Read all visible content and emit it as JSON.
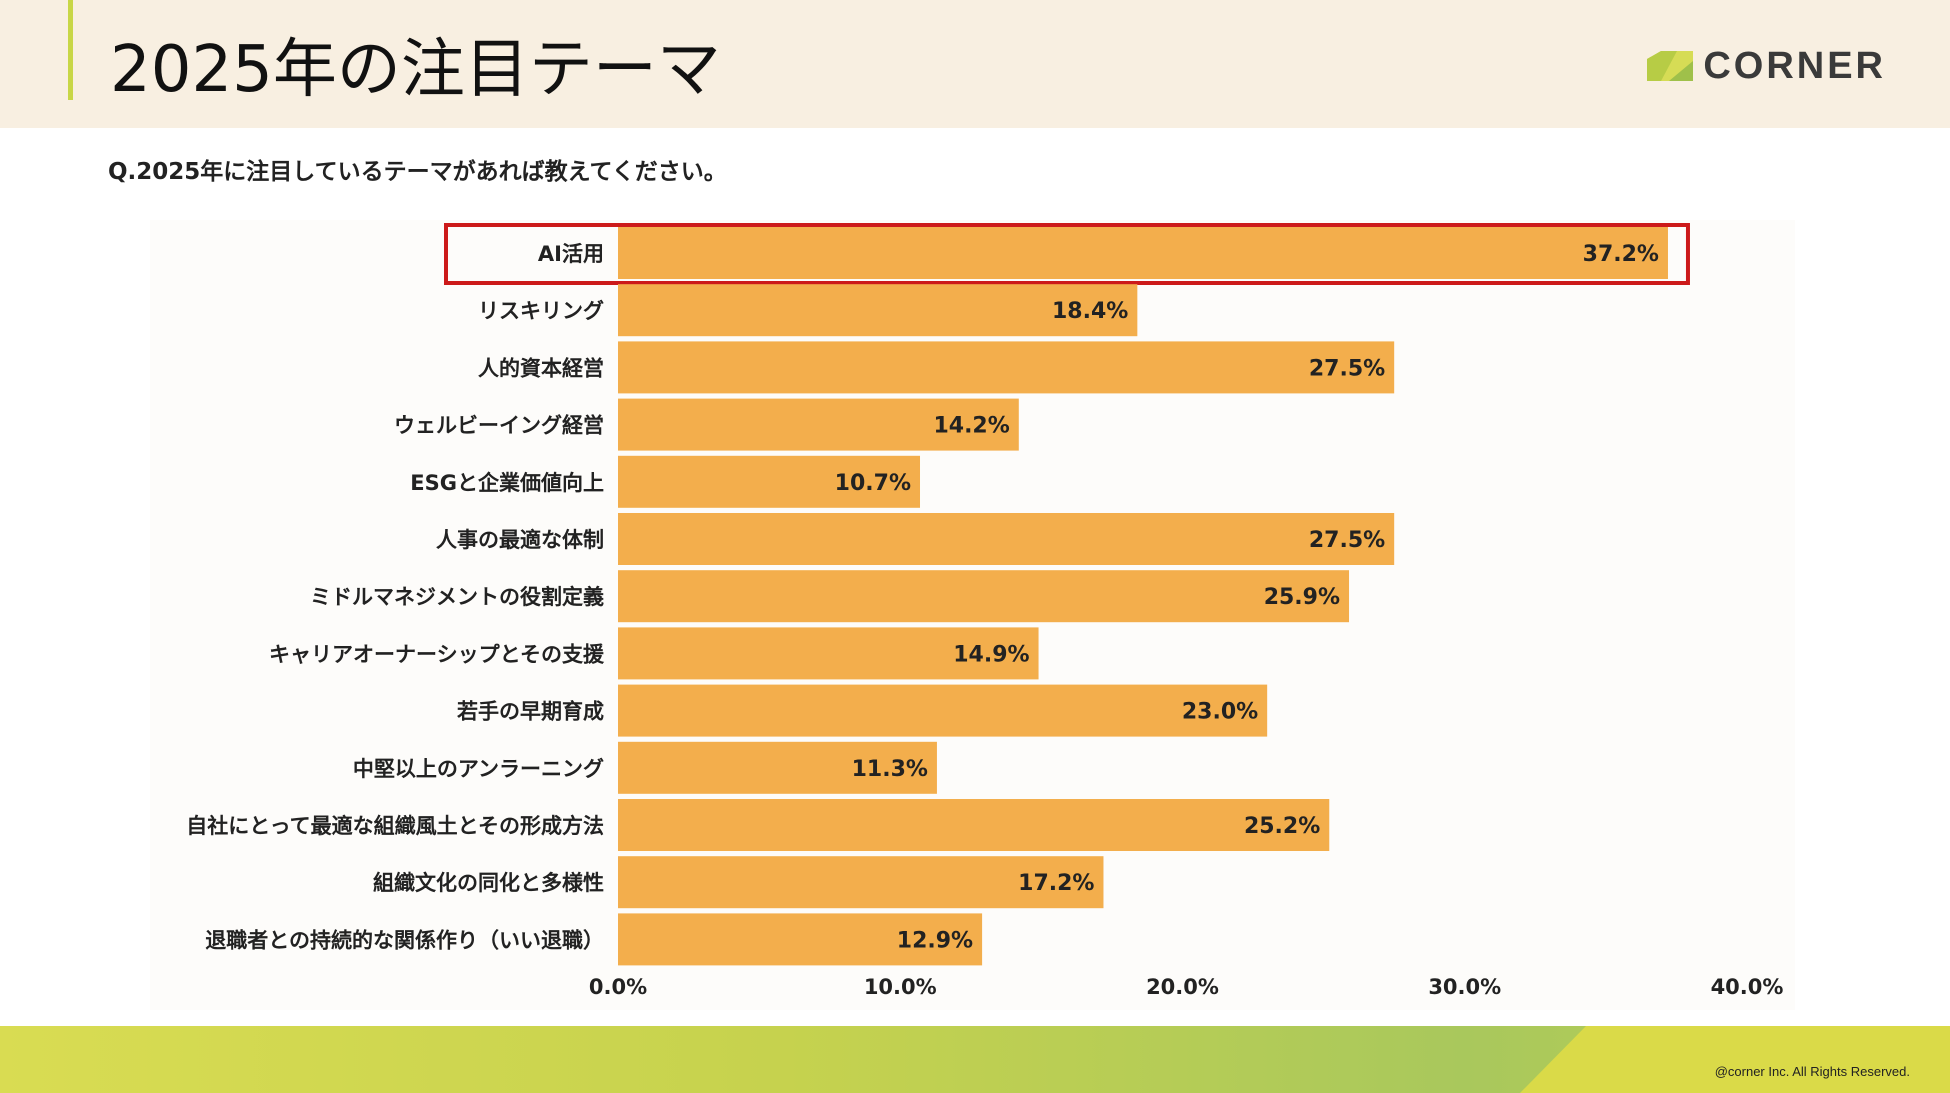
{
  "header": {
    "title": "2025年の注目テーマ",
    "brand": "CORNER"
  },
  "question": "Q.2025年に注目しているテーマがあれば教えてください。",
  "footer": {
    "copyright": "@corner Inc. All Rights Reserved."
  },
  "colors": {
    "bar": "#f3ae4c",
    "highlight": "#cc1a1a",
    "header_bg": "#f8efe1",
    "accent": "#c8d646"
  },
  "chart_data": {
    "type": "bar",
    "orientation": "horizontal",
    "title": "",
    "xlabel": "",
    "ylabel": "",
    "categories": [
      "AI活用",
      "リスキリング",
      "人的資本経営",
      "ウェルビーイング経営",
      "ESGと企業価値向上",
      "人事の最適な体制",
      "ミドルマネジメントの役割定義",
      "キャリアオーナーシップとその支援",
      "若手の早期育成",
      "中堅以上のアンラーニング",
      "自社にとって最適な組織風土とその形成方法",
      "組織文化の同化と多様性",
      "退職者との持続的な関係作り（いい退職）"
    ],
    "values": [
      37.2,
      18.4,
      27.5,
      14.2,
      10.7,
      27.5,
      25.9,
      14.9,
      23.0,
      11.3,
      25.2,
      17.2,
      12.9
    ],
    "value_labels": [
      "37.2%",
      "18.4%",
      "27.5%",
      "14.2%",
      "10.7%",
      "27.5%",
      "25.9%",
      "14.9%",
      "23.0%",
      "11.3%",
      "25.2%",
      "17.2%",
      "12.9%"
    ],
    "xlim": [
      0,
      40
    ],
    "xticks": [
      "0.0%",
      "10.0%",
      "20.0%",
      "30.0%",
      "40.0%"
    ],
    "highlighted_category": "AI活用",
    "grid": false,
    "legend": "none"
  }
}
